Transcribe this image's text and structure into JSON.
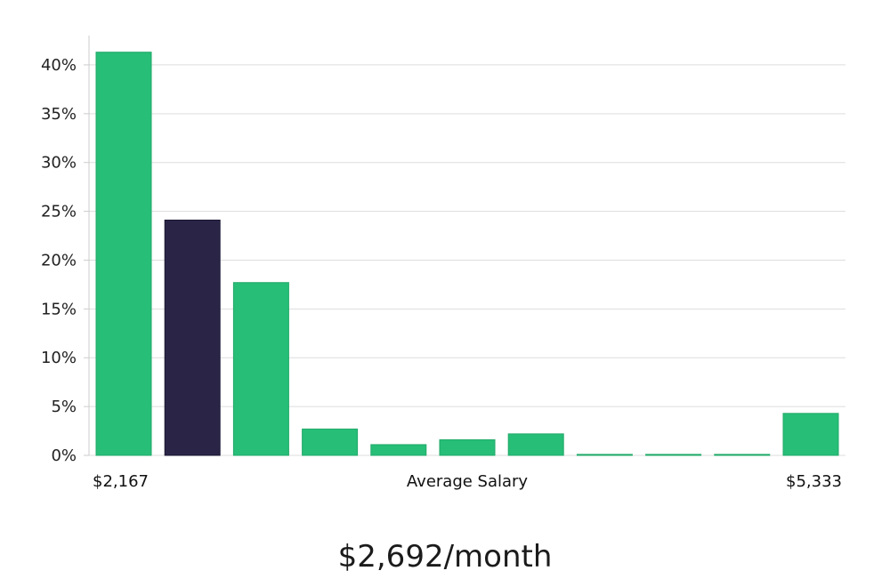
{
  "chart_data": {
    "type": "bar",
    "xlabel": "Average Salary",
    "x_start_label": "$2,167",
    "x_end_label": "$5,333",
    "ylim": [
      0,
      43
    ],
    "yticks": [
      "0%",
      "5%",
      "10%",
      "15%",
      "20%",
      "25%",
      "30%",
      "35%",
      "40%"
    ],
    "ytick_values": [
      0,
      5,
      10,
      15,
      20,
      25,
      30,
      35,
      40
    ],
    "values": [
      41.3,
      24.1,
      17.7,
      2.7,
      1.1,
      1.6,
      2.2,
      0.1,
      0.1,
      0.1,
      4.3
    ],
    "highlight_index": 1,
    "grid": true,
    "colors": {
      "bar": "#27be78",
      "highlight": "#2a2546",
      "grid": "#dddddd",
      "axis": "#cccccc"
    }
  },
  "summary": "$2,692/month"
}
